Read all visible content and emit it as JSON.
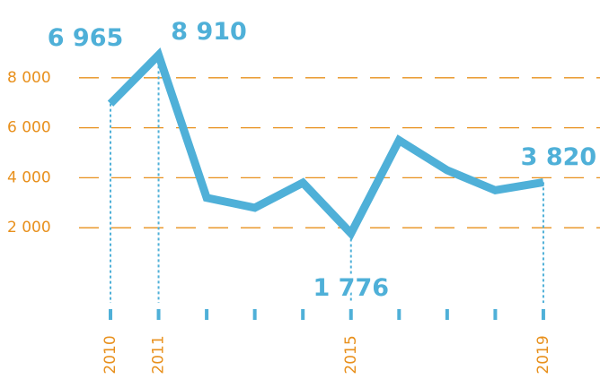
{
  "chart_data": {
    "type": "line",
    "categories": [
      "2010",
      "2011",
      null,
      null,
      null,
      "2015",
      null,
      null,
      null,
      "2019"
    ],
    "series": [
      {
        "color": "#4fb0d8",
        "values": [
          6965,
          8910,
          3200,
          2800,
          3800,
          1776,
          5500,
          4300,
          3500,
          3820
        ],
        "value_labels": [
          "6 965",
          "8 910",
          null,
          null,
          null,
          "1 776",
          null,
          null,
          null,
          "3 820"
        ]
      }
    ],
    "ylim": [
      0,
      10000
    ],
    "yticks": [
      {
        "value": 2000,
        "label": "2 000"
      },
      {
        "value": 4000,
        "label": "4 000"
      },
      {
        "value": 6000,
        "label": "6 000"
      },
      {
        "value": 8000,
        "label": "8 000"
      }
    ],
    "grid": true,
    "grid_color": "#e8901c",
    "tick_color": "#e8901c"
  }
}
